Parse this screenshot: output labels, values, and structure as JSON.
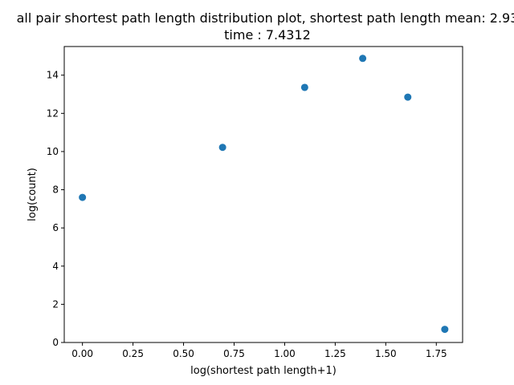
{
  "chart_data": {
    "type": "scatter",
    "title": "all pair shortest path length distribution plot, shortest path length mean: 2.93",
    "subtitle": "time : 7.4312",
    "xlabel": "log(shortest path length+1)",
    "ylabel": "log(count)",
    "xlim": [
      -0.09,
      1.88
    ],
    "ylim": [
      0,
      15.5
    ],
    "xticks": [
      0.0,
      0.25,
      0.5,
      0.75,
      1.0,
      1.25,
      1.5,
      1.75
    ],
    "xtick_labels": [
      "0.00",
      "0.25",
      "0.50",
      "0.75",
      "1.00",
      "1.25",
      "1.50",
      "1.75"
    ],
    "yticks": [
      0,
      2,
      4,
      6,
      8,
      10,
      12,
      14
    ],
    "ytick_labels": [
      "0",
      "2",
      "4",
      "6",
      "8",
      "10",
      "12",
      "14"
    ],
    "grid": false,
    "legend": "none",
    "marker_color": "#1f77b4",
    "points": [
      {
        "x": 0.0,
        "y": 7.6
      },
      {
        "x": 0.693,
        "y": 10.22
      },
      {
        "x": 1.099,
        "y": 13.36
      },
      {
        "x": 1.386,
        "y": 14.88
      },
      {
        "x": 1.609,
        "y": 12.85
      },
      {
        "x": 1.792,
        "y": 0.69
      }
    ]
  }
}
